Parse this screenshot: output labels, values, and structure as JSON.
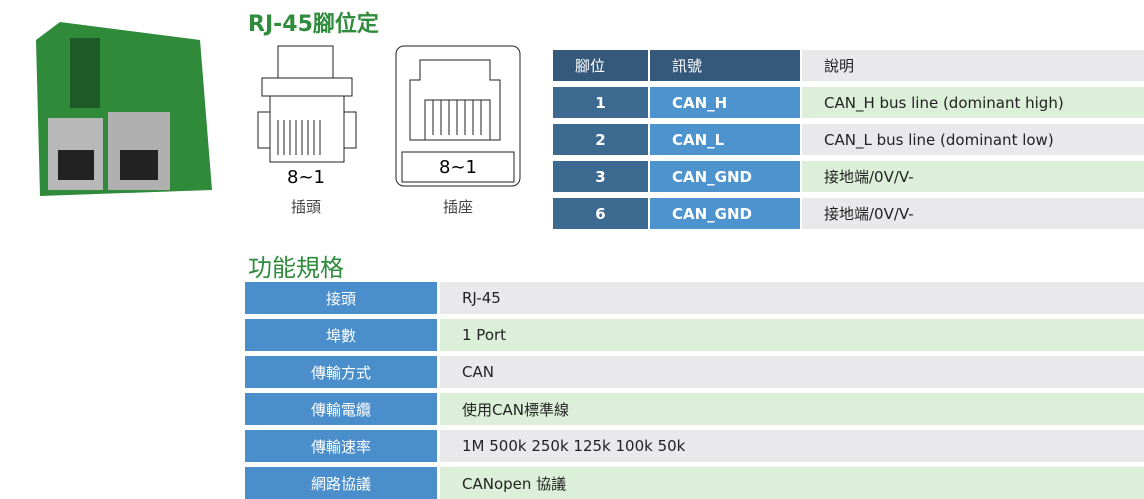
{
  "pinout": {
    "title": "RJ-45腳位定",
    "plug_label": "8~1",
    "plug_caption": "插頭",
    "socket_label": "8~1",
    "socket_caption": "插座",
    "headers": [
      "腳位",
      "訊號",
      "說明"
    ],
    "rows": [
      [
        "1",
        "CAN_H",
        "CAN_H bus line (dominant high)"
      ],
      [
        "2",
        "CAN_L",
        "CAN_L bus line (dominant low)"
      ],
      [
        "3",
        "CAN_GND",
        "接地端/0V/V-"
      ],
      [
        "6",
        "CAN_GND",
        "接地端/0V/V-"
      ]
    ]
  },
  "specs": {
    "title": "功能規格",
    "rows": [
      [
        "接頭",
        "RJ-45"
      ],
      [
        "埠數",
        "1 Port"
      ],
      [
        "傳輸方式",
        "CAN"
      ],
      [
        "傳輸電纜",
        "使用CAN標準線"
      ],
      [
        "傳輸速率",
        "1M 500k 250k 125k 100k 50k"
      ],
      [
        "網路協議",
        "CANopen 協議"
      ]
    ]
  }
}
